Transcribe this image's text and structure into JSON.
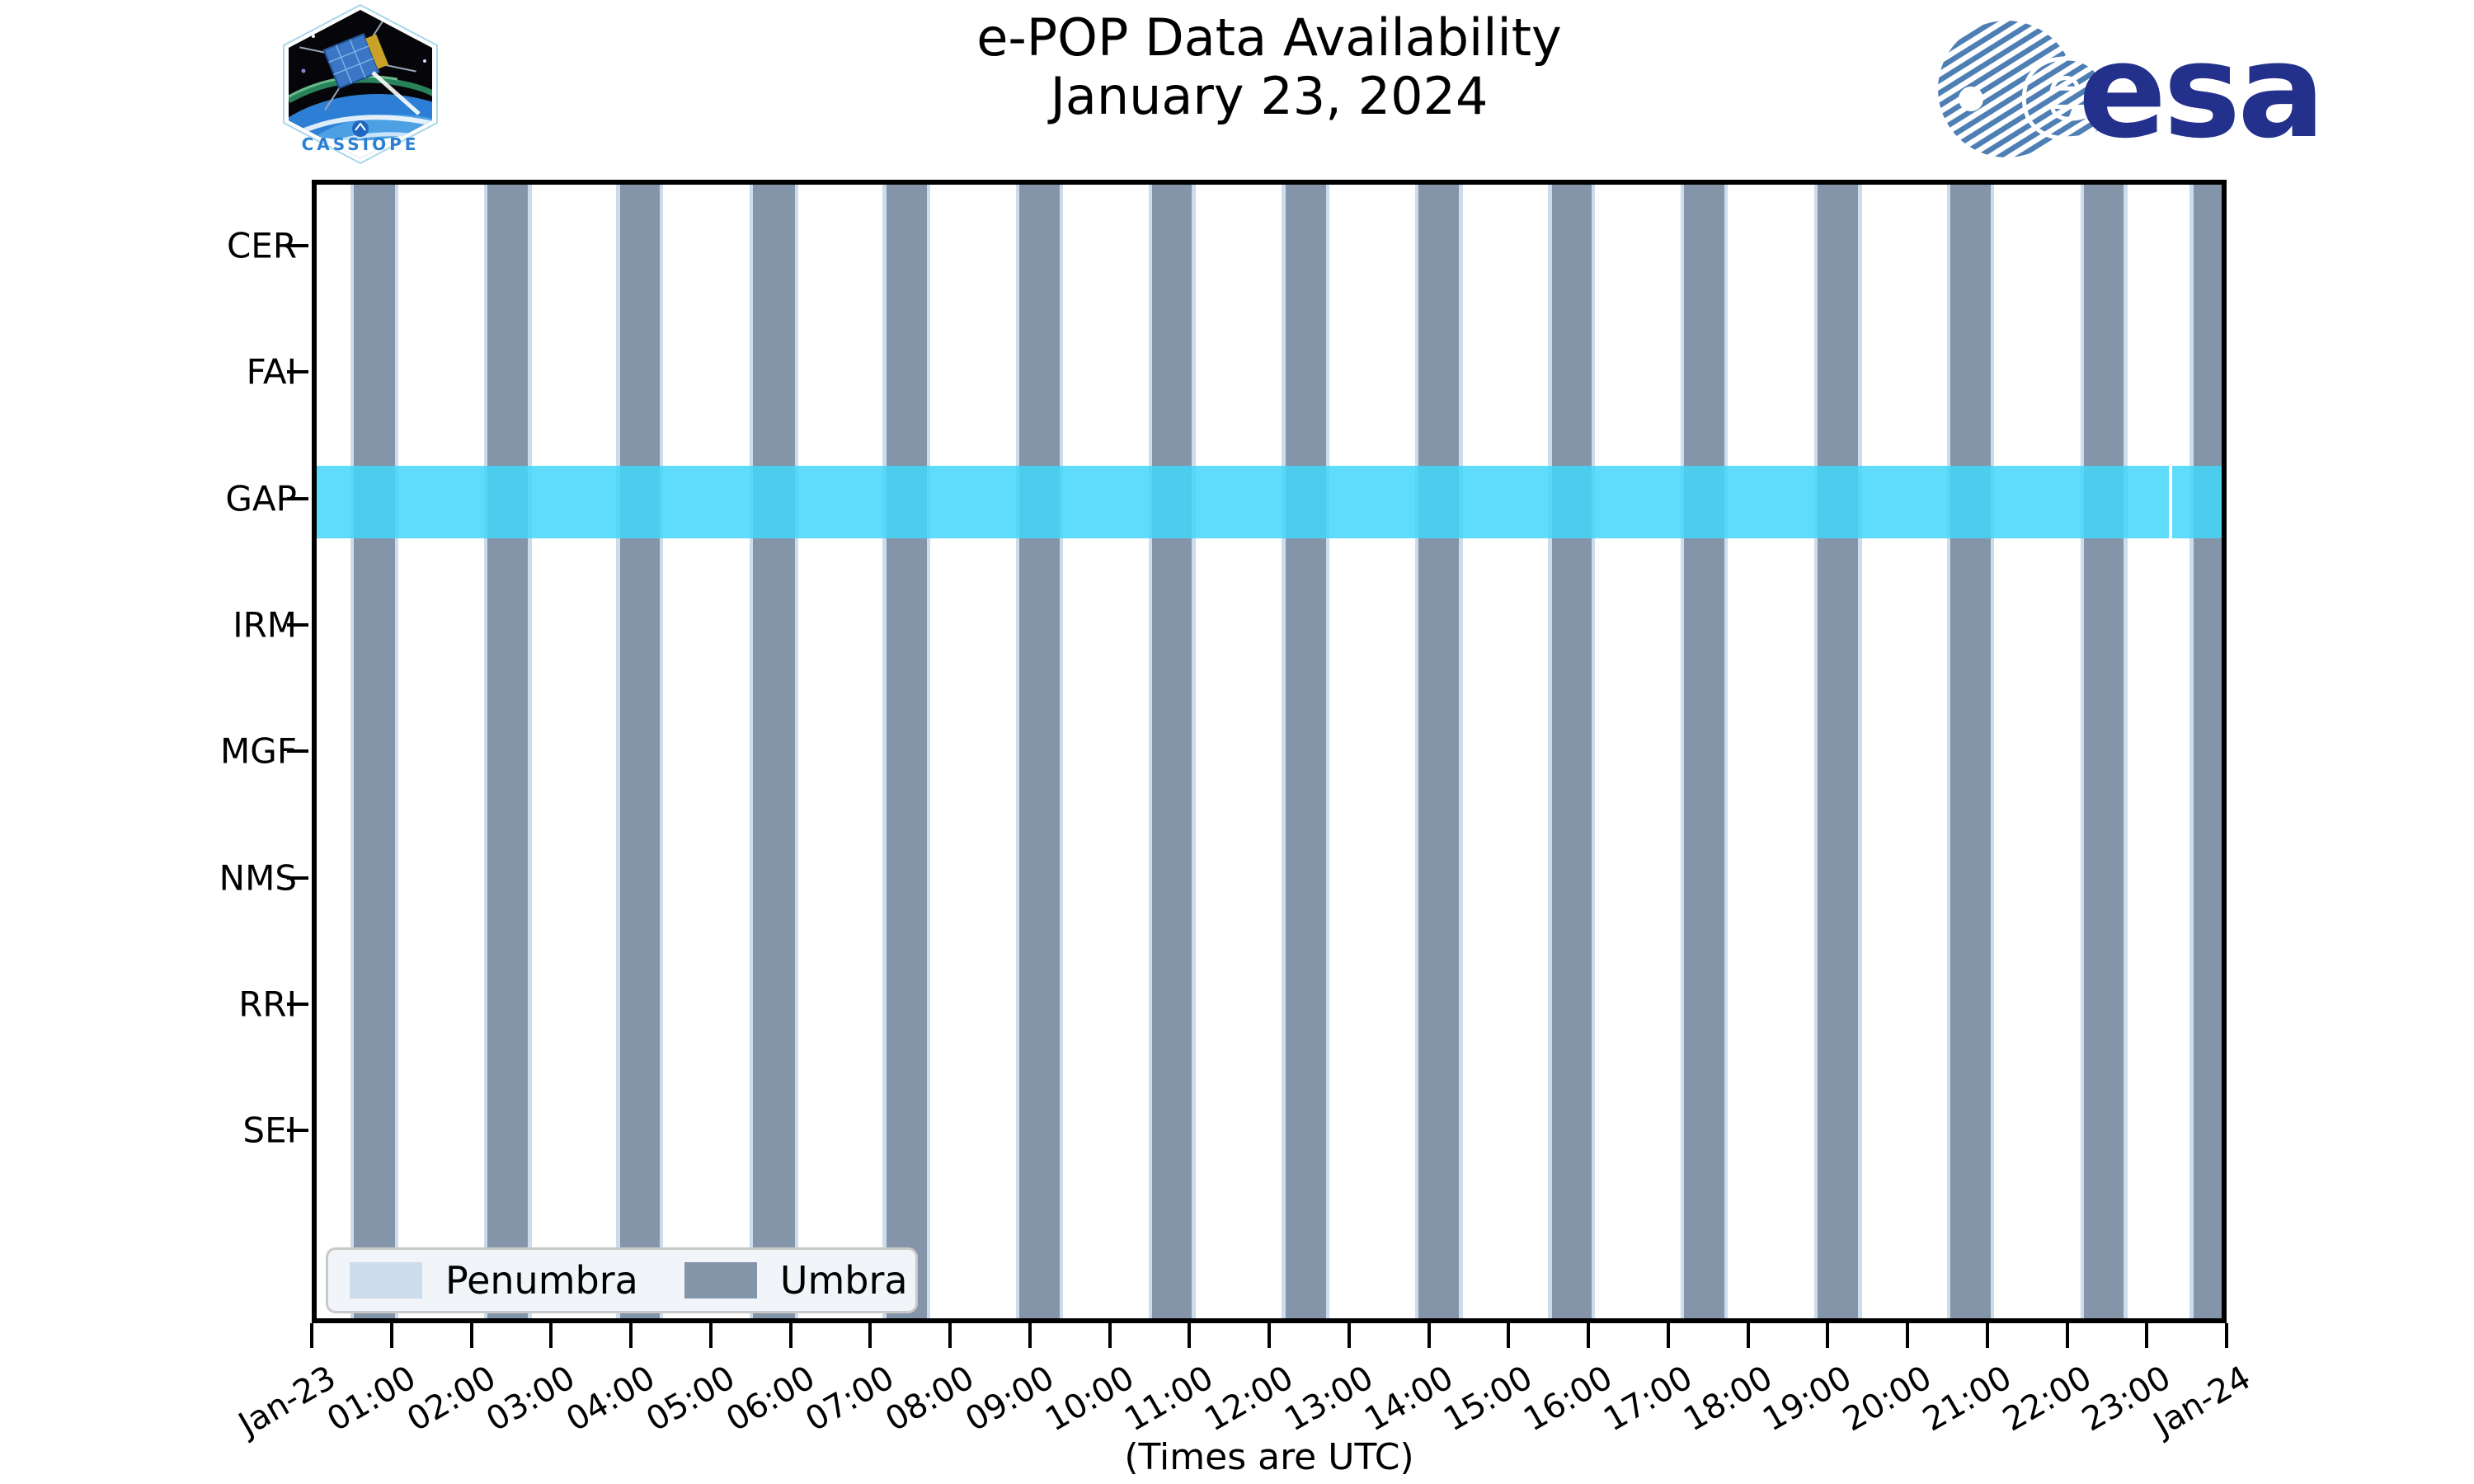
{
  "header": {
    "title": "e-POP Data Availability",
    "subtitle": "January 23, 2024",
    "left_logo_caption": "CASSIOPE",
    "right_logo_text": "esa"
  },
  "chart_data": {
    "type": "availability-timeline",
    "title": "e-POP Data Availability",
    "subtitle": "January 23, 2024",
    "xlabel": "(Times are UTC)",
    "x_axis": {
      "range_hours": [
        0,
        24
      ],
      "tick_interval_hours": 1,
      "tick_labels": [
        "Jan-23",
        "01:00",
        "02:00",
        "03:00",
        "04:00",
        "05:00",
        "06:00",
        "07:00",
        "08:00",
        "09:00",
        "10:00",
        "11:00",
        "12:00",
        "13:00",
        "14:00",
        "15:00",
        "16:00",
        "17:00",
        "18:00",
        "19:00",
        "20:00",
        "21:00",
        "22:00",
        "23:00",
        "Jan-24"
      ],
      "label_rotation_deg": -30
    },
    "instruments": [
      "CER",
      "FAI",
      "GAP",
      "IRM",
      "MGF",
      "NMS",
      "RRI",
      "SEI"
    ],
    "umbra_intervals_hours": [
      [
        0.47,
        0.98
      ],
      [
        2.14,
        2.65
      ],
      [
        3.8,
        4.3
      ],
      [
        5.47,
        5.99
      ],
      [
        7.14,
        7.65
      ],
      [
        8.81,
        9.31
      ],
      [
        10.47,
        10.97
      ],
      [
        12.14,
        12.65
      ],
      [
        13.81,
        14.32
      ],
      [
        15.48,
        15.98
      ],
      [
        17.14,
        17.64
      ],
      [
        18.81,
        19.32
      ],
      [
        20.48,
        20.98
      ],
      [
        22.15,
        22.65
      ],
      [
        23.52,
        24.0
      ]
    ],
    "penumbra_margin_hours": 0.045,
    "gap_availability": {
      "instrument": "GAP",
      "segments_hours": [
        [
          0,
          23.21
        ],
        [
          23.26,
          24.0
        ]
      ]
    },
    "legend": [
      {
        "label": "Penumbra",
        "color": "#cddcea"
      },
      {
        "label": "Umbra",
        "color": "#8495a9"
      }
    ],
    "colors": {
      "umbra": "#8495a9",
      "penumbra": "#cddcea",
      "gap_band": "rgba(68,214,249,0.86)",
      "esa_blue": "#24318c",
      "patch_text_blue": "#2b7fd1",
      "legend_bg": "#f1f4f9"
    },
    "grid": false,
    "legend_position": "lower-left"
  }
}
